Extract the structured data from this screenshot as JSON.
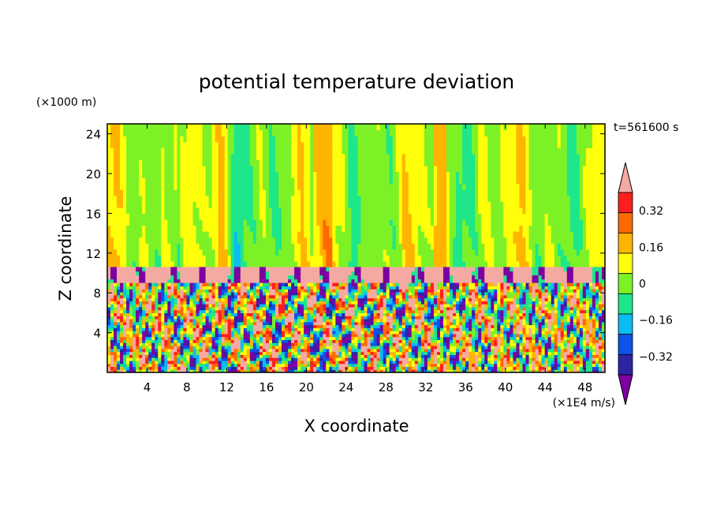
{
  "chart_data": {
    "type": "heatmap",
    "title": "potential temperature deviation",
    "xlabel": "X coordinate",
    "ylabel": "Z coordinate",
    "x_units": "(×1E4 m/s)",
    "y_units": "(×1000 m)",
    "time_label": "t=561600 s",
    "xlim": [
      0,
      50
    ],
    "ylim": [
      0,
      25
    ],
    "x_ticks": [
      4,
      8,
      12,
      16,
      20,
      24,
      28,
      32,
      36,
      40,
      44,
      48
    ],
    "x_tick_labels": [
      "4",
      "8",
      "12",
      "16",
      "20",
      "24",
      "28",
      "32",
      "36",
      "40",
      "44",
      "48"
    ],
    "y_ticks": [
      4,
      8,
      12,
      16,
      20,
      24
    ],
    "y_tick_labels": [
      "4",
      "8",
      "12",
      "16",
      "20",
      "24"
    ],
    "colorbar": {
      "levels": [
        -0.4,
        -0.32,
        -0.24,
        -0.16,
        -0.08,
        0,
        0.08,
        0.16,
        0.24,
        0.32,
        0.4
      ],
      "labeled_levels": [
        0.32,
        0.16,
        0,
        -0.16,
        -0.32
      ],
      "labels": [
        "0.32",
        "0.16",
        "0",
        "−0.16",
        "−0.32"
      ],
      "colors": [
        "#7d00a0",
        "#2b25a6",
        "#0c53e8",
        "#0abcf2",
        "#1ee68a",
        "#7cf226",
        "#ffff0a",
        "#ffb400",
        "#ff6a00",
        "#ff1e1e",
        "#f4aaa3"
      ]
    },
    "layers": [
      {
        "z_range": [
          10.6,
          25
        ],
        "description": "upper stable layer, mostly near 0 to +0.08"
      },
      {
        "z_range": [
          9.0,
          10.6
        ],
        "description": "band of > 0.4 with cells < -0.4"
      },
      {
        "z_range": [
          0,
          9.0
        ],
        "description": "turbulent convective layer, -0.4 to +0.4"
      }
    ],
    "grid": false
  }
}
